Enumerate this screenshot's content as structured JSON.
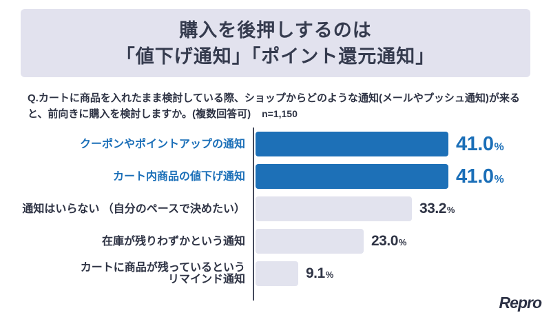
{
  "header": {
    "title_line1": "購入を後押しするのは",
    "title_line2": "「値下げ通知」「ポイント還元通知」"
  },
  "question": {
    "line1": "Q.カートに商品を入れたまま検討している際、ショップからどのような通知(メールやプッシュ通知)が来る",
    "line2": "と、前向きに購入を検討しますか。(複数回答可)",
    "sample_size": "n=1,150"
  },
  "chart_data": {
    "type": "bar",
    "orientation": "horizontal",
    "title": "",
    "xlabel": "",
    "ylabel": "",
    "unit": "%",
    "xlim": [
      0,
      58
    ],
    "grid": false,
    "legend": false,
    "categories": [
      "クーポンやポイントアップの通知",
      "カート内商品の値下げ通知",
      "通知はいらない （自分のペースで決めたい）",
      "在庫が残りわずかという通知",
      "カートに商品が残っているという\nリマインド通知"
    ],
    "values": [
      41.0,
      41.0,
      33.2,
      23.0,
      9.1
    ],
    "value_display": [
      "41.0",
      "41.0",
      "33.2",
      "23.0",
      "9.1"
    ],
    "highlighted": [
      true,
      true,
      false,
      false,
      false
    ],
    "colors": {
      "highlight_bar": "#1d70b7",
      "highlight_text": "#1b6fb8",
      "muted_bar": "#e2e3ee",
      "muted_text": "#2e3344",
      "axis": "#454a5c"
    }
  },
  "footer": {
    "logo_text": "Repro"
  }
}
